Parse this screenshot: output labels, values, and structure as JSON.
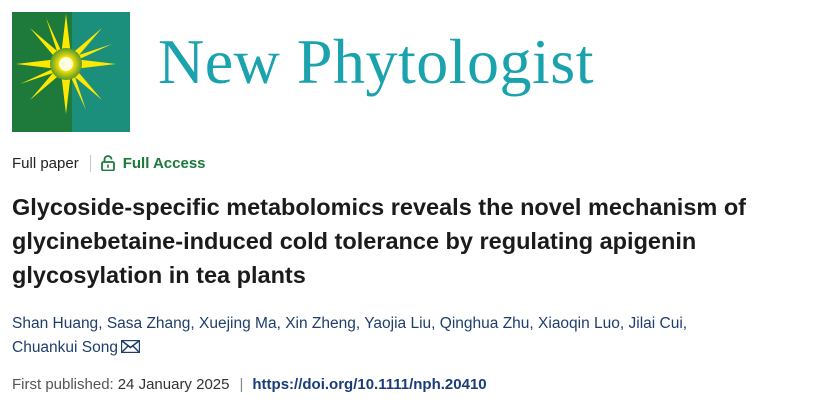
{
  "journal": {
    "title": "New Phytologist"
  },
  "article": {
    "type": "Full paper",
    "access": "Full Access",
    "title": "Glycoside-specific metabolomics reveals the novel mechanism of glycinebetaine-induced cold tolerance by regulating apigenin glycosylation in tea plants",
    "authors": [
      "Shan Huang",
      "Sasa Zhang",
      "Xuejing Ma",
      "Xin Zheng",
      "Yaojia Liu",
      "Qinghua Zhu",
      "Xiaoqin Luo",
      "Jilai Cui",
      "Chuankui Song"
    ],
    "author_separator": ",",
    "corresponding_icon": "mail-icon",
    "first_published_label": "First published:",
    "first_published_date": "24 January 2025",
    "separator": "|",
    "doi": "https://doi.org/10.1111/nph.20410"
  },
  "icons": {
    "access": "lock-open-icon",
    "cover": "journal-cover-image"
  },
  "colors": {
    "journal_title": "#1aa3ad",
    "access": "#1b7a3a",
    "authors": "#1f3e6b",
    "doi": "#1a3d7a",
    "cover_bg": "#1e7d3c",
    "cover_burst": "#ffe500"
  }
}
